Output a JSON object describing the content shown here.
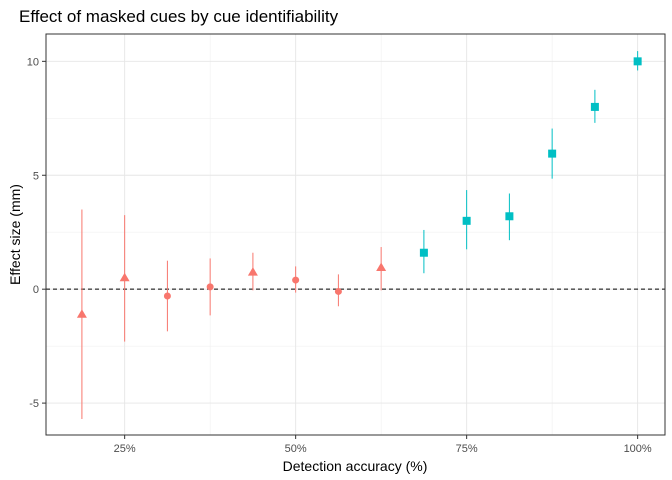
{
  "chart_data": {
    "type": "scatter",
    "title": "Effect of masked cues by cue identifiability",
    "xlabel": "Detection accuracy (%)",
    "ylabel": "Effect size (mm)",
    "x_ticks": [
      {
        "value": 25,
        "label": "25%"
      },
      {
        "value": 50,
        "label": "50%"
      },
      {
        "value": 75,
        "label": "75%"
      },
      {
        "value": 100,
        "label": "100%"
      }
    ],
    "y_ticks": [
      {
        "value": -5,
        "label": "-5"
      },
      {
        "value": 0,
        "label": "0"
      },
      {
        "value": 5,
        "label": "5"
      },
      {
        "value": 10,
        "label": "10"
      }
    ],
    "xlim": [
      13.5,
      104
    ],
    "ylim": [
      -6.4,
      11.2
    ],
    "grid": true,
    "reference_line": {
      "y": 0,
      "style": "dashed"
    },
    "legend": "none",
    "series": [
      {
        "color": "#f8766d",
        "marker_shapes": [
          "triangle",
          "circle"
        ],
        "points": [
          {
            "x": 18.75,
            "y": -1.1,
            "lo": -5.7,
            "hi": 3.5,
            "shape": "triangle"
          },
          {
            "x": 25.0,
            "y": 0.5,
            "lo": -2.3,
            "hi": 3.25,
            "shape": "triangle"
          },
          {
            "x": 31.25,
            "y": -0.3,
            "lo": -1.85,
            "hi": 1.25,
            "shape": "circle"
          },
          {
            "x": 37.5,
            "y": 0.1,
            "lo": -1.15,
            "hi": 1.35,
            "shape": "circle"
          },
          {
            "x": 43.75,
            "y": 0.75,
            "lo": -0.05,
            "hi": 1.6,
            "shape": "triangle"
          },
          {
            "x": 50.0,
            "y": 0.4,
            "lo": -0.15,
            "hi": 1.0,
            "shape": "circle"
          },
          {
            "x": 56.25,
            "y": -0.1,
            "lo": -0.75,
            "hi": 0.65,
            "shape": "circle"
          },
          {
            "x": 62.5,
            "y": 0.95,
            "lo": -0.05,
            "hi": 1.85,
            "shape": "triangle"
          }
        ]
      },
      {
        "color": "#00bfc4",
        "marker_shapes": [
          "square"
        ],
        "points": [
          {
            "x": 68.75,
            "y": 1.6,
            "lo": 0.7,
            "hi": 2.6,
            "shape": "square"
          },
          {
            "x": 75.0,
            "y": 3.0,
            "lo": 1.75,
            "hi": 4.35,
            "shape": "square"
          },
          {
            "x": 81.25,
            "y": 3.2,
            "lo": 2.15,
            "hi": 4.2,
            "shape": "square"
          },
          {
            "x": 87.5,
            "y": 5.95,
            "lo": 4.85,
            "hi": 7.05,
            "shape": "square"
          },
          {
            "x": 93.75,
            "y": 8.0,
            "lo": 7.3,
            "hi": 8.75,
            "shape": "square"
          },
          {
            "x": 100.0,
            "y": 10.0,
            "lo": 9.6,
            "hi": 10.45,
            "shape": "square"
          }
        ]
      }
    ]
  }
}
